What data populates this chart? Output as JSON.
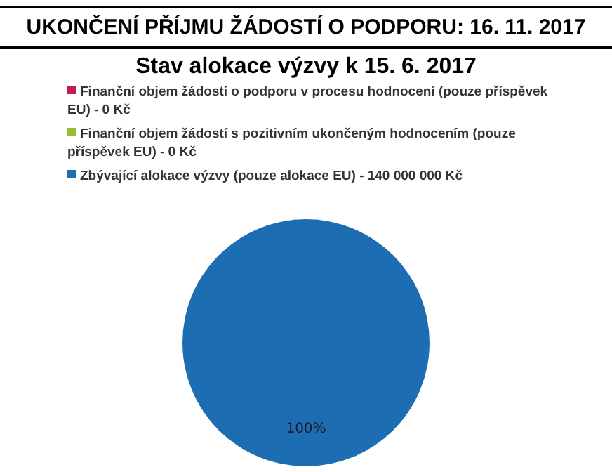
{
  "chart_data": {
    "type": "pie",
    "title": "UKONČENÍ PŘÍJMU ŽÁDOSTÍ O PODPORU: 16. 11. 2017",
    "subtitle": "Stav alokace výzvy k 15. 6. 2017",
    "categories": [
      "Finanční objem žádostí o podporu v procesu hodnocení (pouze  příspěvek EU) - 0 Kč",
      "Finanční objem žádostí s pozitivním ukončeným hodnocením (pouze příspěvek EU) - 0 Kč",
      "Zbývající alokace výzvy (pouze alokace EU) - 140 000 000 Kč"
    ],
    "values": [
      0,
      0,
      100
    ],
    "colors": [
      "#c8175b",
      "#9bbb3a",
      "#1d6db3"
    ],
    "value_labels": [
      null,
      null,
      "100%"
    ],
    "legend": "top"
  }
}
